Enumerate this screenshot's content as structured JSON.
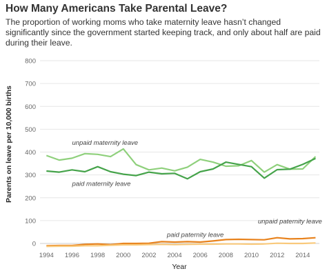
{
  "chart_data": {
    "type": "line",
    "title": "How Many Americans Take Parental Leave?",
    "subtitle": "The proportion of working moms who take maternity leave hasn’t changed significantly since the government started keeping track, and only about half are paid during their leave.",
    "xlabel": "Year",
    "ylabel": "Parents on leave per 10,000 births",
    "xlim": [
      1993.5,
      2015.3
    ],
    "ylim": [
      0,
      800
    ],
    "x_ticks": [
      "1994",
      "1996",
      "1998",
      "2000",
      "2002",
      "2004",
      "2006",
      "2008",
      "2010",
      "2012",
      "2014"
    ],
    "y_ticks": [
      "0",
      "100",
      "200",
      "300",
      "400",
      "500",
      "600",
      "700",
      "800"
    ],
    "grid": "horizontal",
    "legend": "none",
    "x": [
      1994,
      1995,
      1996,
      1997,
      1998,
      1999,
      2000,
      2001,
      2002,
      2003,
      2004,
      2005,
      2006,
      2007,
      2008,
      2009,
      2010,
      2011,
      2012,
      2013,
      2014,
      2015
    ],
    "series": [
      {
        "name": "unpaid maternity leave",
        "color": "#8fd07c",
        "values": [
          385,
          365,
          373,
          393,
          390,
          380,
          414,
          345,
          322,
          330,
          318,
          334,
          368,
          356,
          338,
          340,
          363,
          312,
          345,
          325,
          326,
          380
        ]
      },
      {
        "name": "paid maternity leave",
        "color": "#45a34a",
        "values": [
          317,
          312,
          322,
          314,
          336,
          314,
          303,
          297,
          312,
          305,
          307,
          283,
          314,
          326,
          356,
          346,
          336,
          286,
          323,
          325,
          346,
          372
        ]
      },
      {
        "name": "paid paternity leave",
        "color": "#e8821c",
        "values": [
          -10,
          -9,
          -9,
          -4,
          -2,
          -5,
          0,
          0,
          1,
          8,
          6,
          8,
          6,
          11,
          17,
          18,
          17,
          16,
          25,
          20,
          21,
          25
        ]
      },
      {
        "name": "unpaid paternity leave",
        "color": "#f9c97b",
        "values": [
          -13,
          -12,
          -12,
          -10,
          -10,
          -8,
          -6,
          -6,
          -5,
          -4,
          -5,
          -4,
          -3,
          -3,
          -2,
          -2,
          -3,
          -2,
          1,
          0,
          0,
          2
        ]
      }
    ],
    "annotations": [
      {
        "text": "unpaid maternity leave",
        "x": 1996,
        "y": 432
      },
      {
        "text": "paid maternity leave",
        "x": 1996,
        "y": 252
      },
      {
        "text": "paid paternity leave",
        "x": 2003.4,
        "y": 28
      },
      {
        "text": "unpaid paternity leave",
        "x": 2010.5,
        "y": 88
      }
    ]
  }
}
